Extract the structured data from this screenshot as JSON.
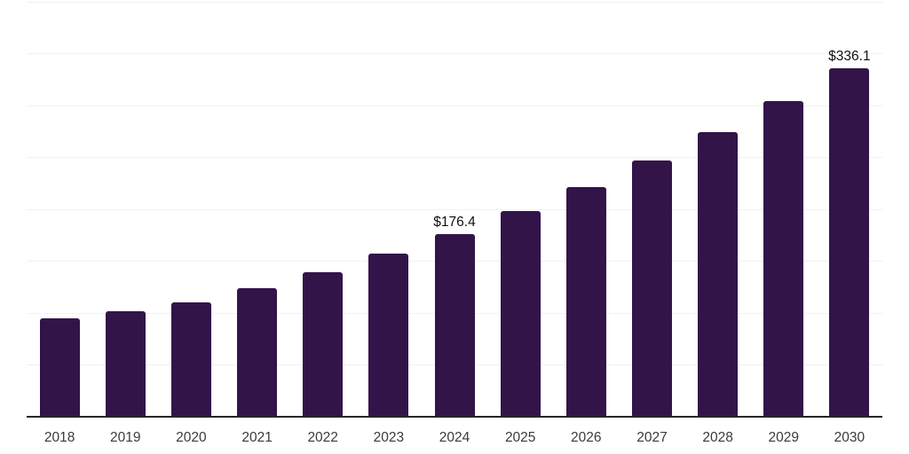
{
  "chart_data": {
    "type": "bar",
    "title": "",
    "xlabel": "",
    "ylabel": "",
    "categories": [
      "2018",
      "2019",
      "2020",
      "2021",
      "2022",
      "2023",
      "2024",
      "2025",
      "2026",
      "2027",
      "2028",
      "2029",
      "2030"
    ],
    "values": [
      94.9,
      101.7,
      110.3,
      123.9,
      139.3,
      157.3,
      176.4,
      198.3,
      221.4,
      247.0,
      274.4,
      304.3,
      336.1
    ],
    "data_labels": [
      {
        "category": "2024",
        "label": "$176.4"
      },
      {
        "category": "2030",
        "label": "$336.1"
      }
    ],
    "value_prefix": "$",
    "ylim": [
      0,
      400
    ],
    "gridline_step": 50,
    "grid": "horizontal",
    "y_axis_labels_visible": false,
    "legend": "none",
    "colors": {
      "bar": "#331449",
      "gridline": "#f1f1f1",
      "axis_line": "#262626",
      "tick_label": "#3a3a3e",
      "value_label": "#111111",
      "background": "#ffffff"
    }
  }
}
